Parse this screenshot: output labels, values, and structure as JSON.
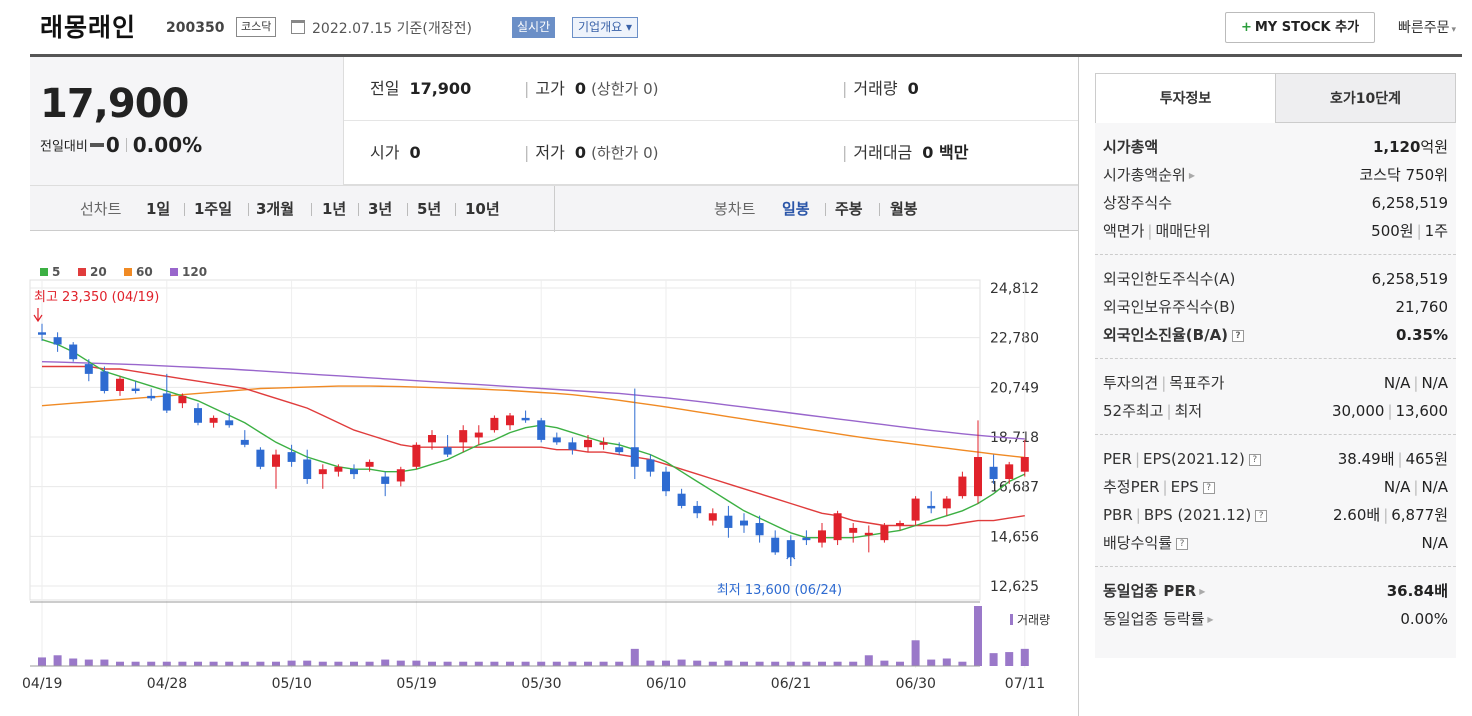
{
  "header": {
    "name": "래몽래인",
    "code": "200350",
    "market": "코스닥",
    "date": "2022.07.15 기준(개장전)",
    "realtime": "실시간",
    "overview": "기업개요",
    "overview_arrow": "▾",
    "mystock_plus": "+",
    "mystock": "MY STOCK 추가",
    "quick_order": "빠른주문",
    "quick_arrow": "▾"
  },
  "quote": {
    "price": "17,900",
    "change_label": "전일대비",
    "change_value": "0",
    "change_pct": "0.00%",
    "prev_close_label": "전일",
    "prev_close": "17,900",
    "high_label": "고가",
    "high": "0",
    "upper_limit": "(상한가 0)",
    "volume_label": "거래량",
    "volume": "0",
    "open_label": "시가",
    "open": "0",
    "low_label": "저가",
    "low": "0",
    "lower_limit": "(하한가 0)",
    "amount_label": "거래대금",
    "amount": "0 백만"
  },
  "periods": {
    "line_chart_label": "선차트",
    "line_items": [
      "1일",
      "1주일",
      "3개월",
      "1년",
      "3년",
      "5년",
      "10년"
    ],
    "candle_label": "봉차트",
    "candle_items": [
      "일봉",
      "주봉",
      "월봉"
    ],
    "candle_active": 0
  },
  "chart_data": {
    "type": "line",
    "legend": [
      {
        "label": "5",
        "color": "#3cb043"
      },
      {
        "label": "20",
        "color": "#e03c3c"
      },
      {
        "label": "60",
        "color": "#f08a24"
      },
      {
        "label": "120",
        "color": "#9966cc"
      }
    ],
    "y_ticks": [
      "24,812",
      "22,780",
      "20,749",
      "18,718",
      "16,687",
      "14,656",
      "12,625"
    ],
    "y_tick_values": [
      24812,
      22780,
      20749,
      18718,
      16687,
      14656,
      12625
    ],
    "ylim": [
      12625,
      24812
    ],
    "x_ticks": [
      "04/19",
      "04/28",
      "05/10",
      "05/19",
      "05/30",
      "06/10",
      "06/21",
      "06/30",
      "07/11"
    ],
    "high_annotation": "최고 23,350 (04/19)",
    "low_annotation": "최저 13,600 (06/24)",
    "volume_label": "거래량",
    "candles": [
      [
        23000,
        23350,
        22650,
        22900
      ],
      [
        22800,
        23000,
        22200,
        22500
      ],
      [
        22500,
        22600,
        21800,
        21900
      ],
      [
        21700,
        21900,
        21000,
        21300
      ],
      [
        21400,
        21600,
        20500,
        20600
      ],
      [
        20600,
        21200,
        20400,
        21100
      ],
      [
        20700,
        21000,
        20500,
        20600
      ],
      [
        20400,
        20700,
        20200,
        20300
      ],
      [
        20500,
        21300,
        19700,
        19800
      ],
      [
        20100,
        20500,
        19900,
        20400
      ],
      [
        19900,
        20100,
        19200,
        19300
      ],
      [
        19300,
        19600,
        19100,
        19500
      ],
      [
        19400,
        19700,
        19100,
        19200
      ],
      [
        18600,
        19000,
        18300,
        18400
      ],
      [
        18200,
        18300,
        17400,
        17500
      ],
      [
        17500,
        18200,
        16600,
        18000
      ],
      [
        18100,
        18400,
        17500,
        17700
      ],
      [
        17800,
        18200,
        16800,
        17000
      ],
      [
        17200,
        17600,
        16600,
        17400
      ],
      [
        17300,
        17600,
        17100,
        17500
      ],
      [
        17400,
        17600,
        17000,
        17200
      ],
      [
        17500,
        17800,
        17300,
        17700
      ],
      [
        17100,
        17300,
        16300,
        16800
      ],
      [
        16900,
        17500,
        16700,
        17400
      ],
      [
        17500,
        18500,
        17400,
        18400
      ],
      [
        18500,
        19000,
        18200,
        18800
      ],
      [
        18300,
        18800,
        17900,
        18000
      ],
      [
        18500,
        19200,
        18100,
        19000
      ],
      [
        18700,
        19200,
        18400,
        18900
      ],
      [
        19000,
        19600,
        18900,
        19500
      ],
      [
        19200,
        19700,
        19000,
        19600
      ],
      [
        19500,
        19800,
        19300,
        19400
      ],
      [
        19400,
        19500,
        18500,
        18600
      ],
      [
        18700,
        18900,
        18400,
        18500
      ],
      [
        18500,
        18700,
        18000,
        18200
      ],
      [
        18300,
        18800,
        18100,
        18600
      ],
      [
        18400,
        18700,
        18200,
        18500
      ],
      [
        18300,
        18500,
        18000,
        18100
      ],
      [
        18300,
        20700,
        17000,
        17500
      ],
      [
        17800,
        18000,
        17100,
        17300
      ],
      [
        17300,
        17500,
        16300,
        16500
      ],
      [
        16400,
        16600,
        15800,
        15900
      ],
      [
        15900,
        16100,
        15400,
        15600
      ],
      [
        15300,
        15800,
        15100,
        15600
      ],
      [
        15500,
        15900,
        14600,
        15000
      ],
      [
        15300,
        15600,
        14800,
        15100
      ],
      [
        15200,
        15500,
        14400,
        14700
      ],
      [
        14600,
        14900,
        13900,
        14000
      ],
      [
        14500,
        14700,
        13600,
        13800
      ],
      [
        14600,
        14900,
        14300,
        14500
      ],
      [
        14400,
        15200,
        14200,
        14900
      ],
      [
        14500,
        15700,
        14300,
        15600
      ],
      [
        14800,
        15200,
        14400,
        15000
      ],
      [
        14700,
        15100,
        14000,
        14800
      ],
      [
        14500,
        15200,
        14400,
        15100
      ],
      [
        15100,
        15300,
        14900,
        15200
      ],
      [
        15300,
        16300,
        15100,
        16200
      ],
      [
        15900,
        16500,
        15600,
        15800
      ],
      [
        15800,
        16300,
        15500,
        16200
      ],
      [
        16300,
        17300,
        16200,
        17100
      ],
      [
        16300,
        19400,
        16000,
        17900
      ],
      [
        17500,
        18000,
        16800,
        17000
      ],
      [
        17000,
        17700,
        16800,
        17600
      ],
      [
        17300,
        18600,
        17100,
        17900
      ]
    ],
    "ma5": [
      22700,
      22500,
      22200,
      21800,
      21400,
      21200,
      21000,
      20800,
      20600,
      20400,
      20200,
      19900,
      19600,
      19300,
      18900,
      18500,
      18200,
      17900,
      17700,
      17500,
      17400,
      17400,
      17300,
      17300,
      17400,
      17600,
      17800,
      18100,
      18400,
      18600,
      18900,
      19100,
      19200,
      19100,
      18900,
      18700,
      18500,
      18400,
      18200,
      18000,
      17700,
      17300,
      16900,
      16500,
      16100,
      15700,
      15400,
      15100,
      14800,
      14600,
      14600,
      14600,
      14600,
      14700,
      14800,
      14900,
      15100,
      15300,
      15500,
      15700,
      16000,
      16400,
      16900,
      17200
    ],
    "ma20": [
      21600,
      21600,
      21600,
      21600,
      21500,
      21500,
      21400,
      21300,
      21200,
      21100,
      21000,
      20900,
      20800,
      20700,
      20500,
      20300,
      20100,
      19900,
      19600,
      19300,
      19000,
      18800,
      18600,
      18400,
      18300,
      18300,
      18300,
      18300,
      18300,
      18300,
      18300,
      18300,
      18300,
      18200,
      18200,
      18100,
      18100,
      18000,
      17900,
      17800,
      17600,
      17400,
      17200,
      17000,
      16800,
      16600,
      16400,
      16200,
      16000,
      15800,
      15600,
      15500,
      15300,
      15200,
      15100,
      15100,
      15100,
      15100,
      15100,
      15200,
      15300,
      15300,
      15400,
      15500
    ],
    "ma60": [
      20000,
      20050,
      20100,
      20150,
      20200,
      20250,
      20300,
      20350,
      20400,
      20450,
      20500,
      20550,
      20600,
      20650,
      20700,
      20720,
      20740,
      20760,
      20780,
      20800,
      20800,
      20800,
      20790,
      20780,
      20760,
      20740,
      20720,
      20700,
      20680,
      20650,
      20620,
      20580,
      20540,
      20500,
      20450,
      20380,
      20300,
      20220,
      20130,
      20040,
      19950,
      19850,
      19750,
      19650,
      19550,
      19450,
      19350,
      19250,
      19150,
      19050,
      18950,
      18850,
      18750,
      18660,
      18580,
      18500,
      18420,
      18340,
      18260,
      18180,
      18100,
      18020,
      17950,
      17880
    ],
    "ma120": [
      21800,
      21780,
      21760,
      21740,
      21720,
      21700,
      21680,
      21650,
      21620,
      21590,
      21560,
      21530,
      21500,
      21460,
      21420,
      21380,
      21340,
      21300,
      21260,
      21220,
      21180,
      21140,
      21100,
      21060,
      21020,
      20980,
      20940,
      20900,
      20860,
      20820,
      20780,
      20740,
      20700,
      20660,
      20620,
      20580,
      20540,
      20500,
      20440,
      20380,
      20320,
      20250,
      20180,
      20100,
      20020,
      19940,
      19860,
      19780,
      19700,
      19620,
      19540,
      19460,
      19380,
      19300,
      19220,
      19140,
      19060,
      18990,
      18920,
      18850,
      18790,
      18730,
      18680,
      18640
    ],
    "volume": [
      8,
      10,
      7,
      6,
      6,
      4,
      4,
      4,
      4,
      4,
      4,
      4,
      4,
      4,
      4,
      4,
      5,
      5,
      4,
      4,
      4,
      4,
      6,
      5,
      5,
      4,
      4,
      4,
      4,
      4,
      4,
      4,
      4,
      4,
      4,
      4,
      4,
      4,
      16,
      5,
      5,
      6,
      5,
      4,
      5,
      4,
      4,
      4,
      4,
      4,
      4,
      4,
      4,
      10,
      5,
      4,
      24,
      6,
      7,
      4,
      56,
      12,
      13,
      16
    ]
  },
  "right_panel": {
    "tab_invest": "투자정보",
    "tab_quote": "호가10단계",
    "groups": [
      [
        {
          "k": "시가총액",
          "v": "1,120",
          "v_suffix": "억원",
          "bold": true
        },
        {
          "k": "시가총액순위",
          "tri": true,
          "v": "코스닥 750위"
        },
        {
          "k": "상장주식수",
          "v": "6,258,519"
        },
        {
          "k": "액면가",
          "k2": "매매단위",
          "v": "500원",
          "v2": "1주"
        }
      ],
      [
        {
          "k": "외국인한도주식수(A)",
          "v": "6,258,519"
        },
        {
          "k": "외국인보유주식수(B)",
          "v": "21,760"
        },
        {
          "k": "외국인소진율(B/A)",
          "q": true,
          "v": "0.35%",
          "bold": true
        }
      ],
      [
        {
          "k": "투자의견",
          "k2": "목표주가",
          "v": "N/A",
          "v2": "N/A"
        },
        {
          "k": "52주최고",
          "k2": "최저",
          "v": "30,000",
          "v2": "13,600"
        }
      ],
      [
        {
          "k": "PER",
          "k2": "EPS(2021.12)",
          "q": true,
          "v": "38.49배",
          "v2": "465원"
        },
        {
          "k": "추정PER",
          "k2": "EPS",
          "q": true,
          "v": "N/A",
          "v2": "N/A"
        },
        {
          "k": "PBR",
          "k2": "BPS (2021.12)",
          "q": true,
          "v": "2.60배",
          "v2": "6,877원"
        },
        {
          "k": "배당수익률",
          "q": true,
          "v": "N/A"
        }
      ],
      [
        {
          "k": "동일업종 PER",
          "tri": true,
          "v": "36.84배",
          "bold": true
        },
        {
          "k": "동일업종 등락률",
          "tri": true,
          "v": "0.00%"
        }
      ]
    ]
  }
}
